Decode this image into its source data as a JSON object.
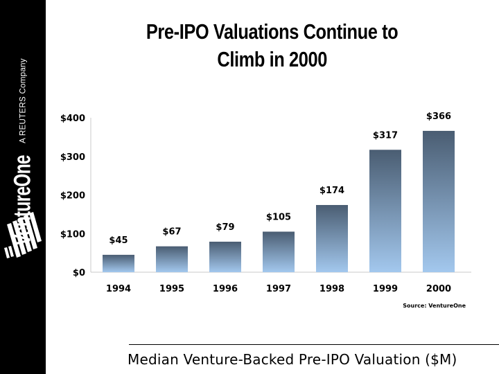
{
  "brand": {
    "name": "VentureOne",
    "tagline": "A REUTERS Company"
  },
  "slide": {
    "title_line1": "Pre-IPO Valuations Continue to",
    "title_line2": "Climb in 2000",
    "source": "Source: VentureOne",
    "subtitle": "Median Venture-Backed Pre-IPO Valuation ($M)"
  },
  "colors": {
    "bar_top": "#4a5d72",
    "bar_bottom": "#a3c8ee",
    "sidebar": "#000000"
  },
  "chart_data": {
    "type": "bar",
    "title": "Pre-IPO Valuations Continue to Climb in 2000",
    "xlabel": "",
    "ylabel": "Median Venture-Backed Pre-IPO Valuation ($M)",
    "categories": [
      "1994",
      "1995",
      "1996",
      "1997",
      "1998",
      "1999",
      "2000"
    ],
    "values": [
      45,
      67,
      79,
      105,
      174,
      317,
      366
    ],
    "labels": [
      "$45",
      "$67",
      "$79",
      "$105",
      "$174",
      "$317",
      "$366"
    ],
    "ylim": [
      0,
      400
    ],
    "yticks": [
      0,
      100,
      200,
      300,
      400
    ],
    "ytick_labels": [
      "$0",
      "$100",
      "$200",
      "$300",
      "$400"
    ],
    "grid": false,
    "legend": "none"
  }
}
